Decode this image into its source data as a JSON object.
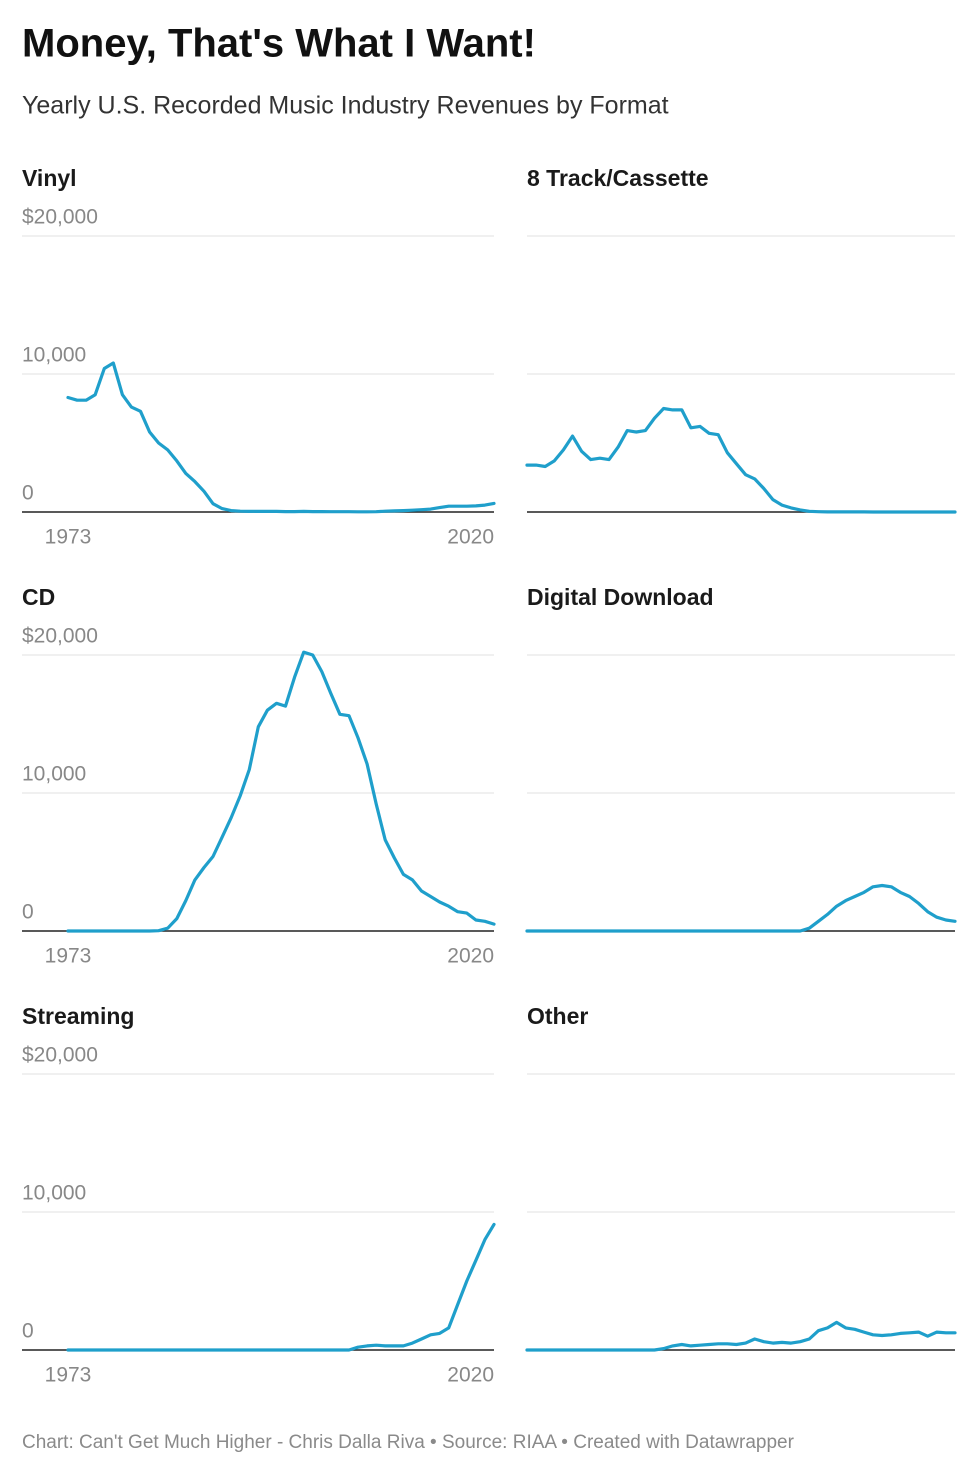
{
  "title": "Money, That's What I Want!",
  "subtitle": "Yearly U.S. Recorded Music Industry Revenues by Format",
  "footer": "Chart: Can't Get Much Higher - Chris Dalla Riva • Source: RIAA • Created with Datawrapper",
  "chart_data": [
    {
      "type": "line",
      "title": "Vinyl",
      "color": "#1f9fcb",
      "x": [
        1973,
        1974,
        1975,
        1976,
        1977,
        1978,
        1979,
        1980,
        1981,
        1982,
        1983,
        1984,
        1985,
        1986,
        1987,
        1988,
        1989,
        1990,
        1991,
        1992,
        1993,
        1994,
        1995,
        1996,
        1997,
        1998,
        1999,
        2000,
        2001,
        2002,
        2003,
        2004,
        2005,
        2006,
        2007,
        2008,
        2009,
        2010,
        2011,
        2012,
        2013,
        2014,
        2015,
        2016,
        2017,
        2018,
        2019,
        2020
      ],
      "values": [
        8300,
        8100,
        8100,
        8500,
        10400,
        10800,
        8500,
        7600,
        7300,
        5800,
        5000,
        4500,
        3700,
        2800,
        2200,
        1500,
        600,
        250,
        100,
        60,
        40,
        50,
        40,
        40,
        30,
        30,
        40,
        30,
        30,
        20,
        20,
        20,
        15,
        15,
        20,
        60,
        80,
        100,
        130,
        170,
        210,
        320,
        420,
        420,
        420,
        440,
        500,
        620
      ],
      "xlim": [
        1973,
        2020
      ],
      "xticks": [
        1973,
        2020
      ],
      "ylim": [
        0,
        20000
      ],
      "yticks": [
        0,
        {
          "value": 10000,
          "label": "10,000"
        },
        {
          "value": 20000,
          "label": "$20,000"
        }
      ],
      "ytick_labels": true
    },
    {
      "type": "line",
      "title": "8 Track/Cassette",
      "color": "#1f9fcb",
      "x": [
        1973,
        1974,
        1975,
        1976,
        1977,
        1978,
        1979,
        1980,
        1981,
        1982,
        1983,
        1984,
        1985,
        1986,
        1987,
        1988,
        1989,
        1990,
        1991,
        1992,
        1993,
        1994,
        1995,
        1996,
        1997,
        1998,
        1999,
        2000,
        2001,
        2002,
        2003,
        2004,
        2005,
        2006,
        2007,
        2008,
        2009,
        2010,
        2011,
        2012,
        2013,
        2014,
        2015,
        2016,
        2017,
        2018,
        2019,
        2020
      ],
      "values": [
        3400,
        3400,
        3300,
        3700,
        4500,
        5500,
        4400,
        3800,
        3900,
        3800,
        4700,
        5900,
        5800,
        5900,
        6800,
        7500,
        7400,
        7400,
        6100,
        6200,
        5700,
        5600,
        4300,
        3500,
        2700,
        2400,
        1700,
        900,
        500,
        300,
        150,
        50,
        20,
        10,
        10,
        10,
        10,
        10,
        0,
        0,
        0,
        0,
        0,
        0,
        0,
        0,
        0,
        0
      ],
      "xlim": [
        1973,
        2020
      ],
      "ylim": [
        0,
        20000
      ],
      "yticks": [
        0,
        10000,
        20000
      ],
      "ytick_labels": false
    },
    {
      "type": "line",
      "title": "CD",
      "color": "#1f9fcb",
      "x": [
        1973,
        1974,
        1975,
        1976,
        1977,
        1978,
        1979,
        1980,
        1981,
        1982,
        1983,
        1984,
        1985,
        1986,
        1987,
        1988,
        1989,
        1990,
        1991,
        1992,
        1993,
        1994,
        1995,
        1996,
        1997,
        1998,
        1999,
        2000,
        2001,
        2002,
        2003,
        2004,
        2005,
        2006,
        2007,
        2008,
        2009,
        2010,
        2011,
        2012,
        2013,
        2014,
        2015,
        2016,
        2017,
        2018,
        2019,
        2020
      ],
      "values": [
        0,
        0,
        0,
        0,
        0,
        0,
        0,
        0,
        0,
        0,
        20,
        200,
        900,
        2200,
        3700,
        4600,
        5400,
        6800,
        8200,
        9800,
        11700,
        14800,
        16000,
        16500,
        16300,
        18400,
        20200,
        20000,
        18800,
        17200,
        15700,
        15600,
        14000,
        12100,
        9200,
        6600,
        5300,
        4100,
        3700,
        2900,
        2500,
        2100,
        1800,
        1400,
        1300,
        800,
        700,
        500
      ],
      "xlim": [
        1973,
        2020
      ],
      "xticks": [
        1973,
        2020
      ],
      "ylim": [
        0,
        20000
      ],
      "yticks": [
        0,
        {
          "value": 10000,
          "label": "10,000"
        },
        {
          "value": 20000,
          "label": "$20,000"
        }
      ],
      "ytick_labels": true
    },
    {
      "type": "line",
      "title": "Digital Download",
      "color": "#1f9fcb",
      "x": [
        1973,
        1974,
        1975,
        1976,
        1977,
        1978,
        1979,
        1980,
        1981,
        1982,
        1983,
        1984,
        1985,
        1986,
        1987,
        1988,
        1989,
        1990,
        1991,
        1992,
        1993,
        1994,
        1995,
        1996,
        1997,
        1998,
        1999,
        2000,
        2001,
        2002,
        2003,
        2004,
        2005,
        2006,
        2007,
        2008,
        2009,
        2010,
        2011,
        2012,
        2013,
        2014,
        2015,
        2016,
        2017,
        2018,
        2019,
        2020
      ],
      "values": [
        0,
        0,
        0,
        0,
        0,
        0,
        0,
        0,
        0,
        0,
        0,
        0,
        0,
        0,
        0,
        0,
        0,
        0,
        0,
        0,
        0,
        0,
        0,
        0,
        0,
        0,
        0,
        0,
        0,
        0,
        0,
        200,
        700,
        1200,
        1800,
        2200,
        2500,
        2800,
        3200,
        3300,
        3200,
        2800,
        2500,
        2000,
        1400,
        1000,
        800,
        700
      ],
      "xlim": [
        1973,
        2020
      ],
      "ylim": [
        0,
        20000
      ],
      "yticks": [
        0,
        10000,
        20000
      ],
      "ytick_labels": false
    },
    {
      "type": "line",
      "title": "Streaming",
      "color": "#1f9fcb",
      "x": [
        1973,
        1974,
        1975,
        1976,
        1977,
        1978,
        1979,
        1980,
        1981,
        1982,
        1983,
        1984,
        1985,
        1986,
        1987,
        1988,
        1989,
        1990,
        1991,
        1992,
        1993,
        1994,
        1995,
        1996,
        1997,
        1998,
        1999,
        2000,
        2001,
        2002,
        2003,
        2004,
        2005,
        2006,
        2007,
        2008,
        2009,
        2010,
        2011,
        2012,
        2013,
        2014,
        2015,
        2016,
        2017,
        2018,
        2019,
        2020
      ],
      "values": [
        0,
        0,
        0,
        0,
        0,
        0,
        0,
        0,
        0,
        0,
        0,
        0,
        0,
        0,
        0,
        0,
        0,
        0,
        0,
        0,
        0,
        0,
        0,
        0,
        0,
        0,
        0,
        0,
        0,
        0,
        0,
        0,
        200,
        300,
        350,
        300,
        300,
        300,
        500,
        800,
        1100,
        1200,
        1600,
        3300,
        5000,
        6500,
        8000,
        9100
      ],
      "xlim": [
        1973,
        2020
      ],
      "xticks": [
        1973,
        2020
      ],
      "ylim": [
        0,
        20000
      ],
      "yticks": [
        0,
        {
          "value": 10000,
          "label": "10,000"
        },
        {
          "value": 20000,
          "label": "$20,000"
        }
      ],
      "ytick_labels": true
    },
    {
      "type": "line",
      "title": "Other",
      "color": "#1f9fcb",
      "x": [
        1973,
        1974,
        1975,
        1976,
        1977,
        1978,
        1979,
        1980,
        1981,
        1982,
        1983,
        1984,
        1985,
        1986,
        1987,
        1988,
        1989,
        1990,
        1991,
        1992,
        1993,
        1994,
        1995,
        1996,
        1997,
        1998,
        1999,
        2000,
        2001,
        2002,
        2003,
        2004,
        2005,
        2006,
        2007,
        2008,
        2009,
        2010,
        2011,
        2012,
        2013,
        2014,
        2015,
        2016,
        2017,
        2018,
        2019,
        2020
      ],
      "values": [
        0,
        0,
        0,
        0,
        0,
        0,
        0,
        0,
        0,
        0,
        0,
        0,
        0,
        0,
        0,
        100,
        300,
        400,
        300,
        350,
        400,
        450,
        450,
        400,
        500,
        800,
        600,
        500,
        550,
        500,
        600,
        800,
        1400,
        1600,
        2000,
        1600,
        1500,
        1300,
        1100,
        1050,
        1100,
        1200,
        1250,
        1300,
        1000,
        1300,
        1250,
        1250
      ],
      "xlim": [
        1973,
        2020
      ],
      "ylim": [
        0,
        20000
      ],
      "yticks": [
        0,
        10000,
        20000
      ],
      "ytick_labels": false
    }
  ]
}
